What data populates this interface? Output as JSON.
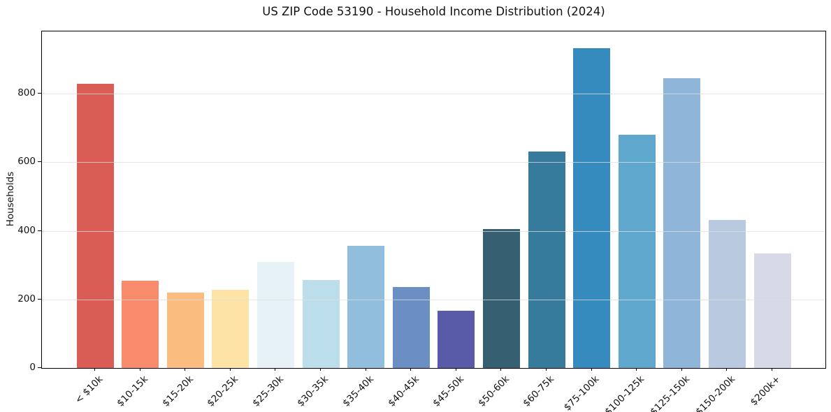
{
  "chart_data": {
    "type": "bar",
    "title": "US ZIP Code 53190 - Household Income Distribution (2024)",
    "xlabel": "",
    "ylabel": "Households",
    "categories": [
      "< $10k",
      "$10-15k",
      "$15-20k",
      "$20-25k",
      "$25-30k",
      "$30-35k",
      "$35-40k",
      "$40-45k",
      "$45-50k",
      "$50-60k",
      "$60-75k",
      "$75-100k",
      "$100-125k",
      "$125-150k",
      "$150-200k",
      "$200k+"
    ],
    "values": [
      830,
      255,
      220,
      228,
      310,
      256,
      357,
      236,
      168,
      406,
      631,
      934,
      681,
      846,
      432,
      334
    ],
    "bar_colors": [
      "#d95d55",
      "#f78b6b",
      "#fbbc80",
      "#fde4a6",
      "#e6f2f8",
      "#bcdeea",
      "#92bedd",
      "#6b8fc3",
      "#5a5ba8",
      "#365f72",
      "#377b9c",
      "#358abe",
      "#5fa7cc",
      "#8fb6d9",
      "#b9c9e0",
      "#d7d9e7"
    ],
    "ylim": [
      0,
      982
    ],
    "yticks": [
      0,
      200,
      400,
      600,
      800
    ],
    "grid": "horizontal",
    "legend_position": "none"
  }
}
